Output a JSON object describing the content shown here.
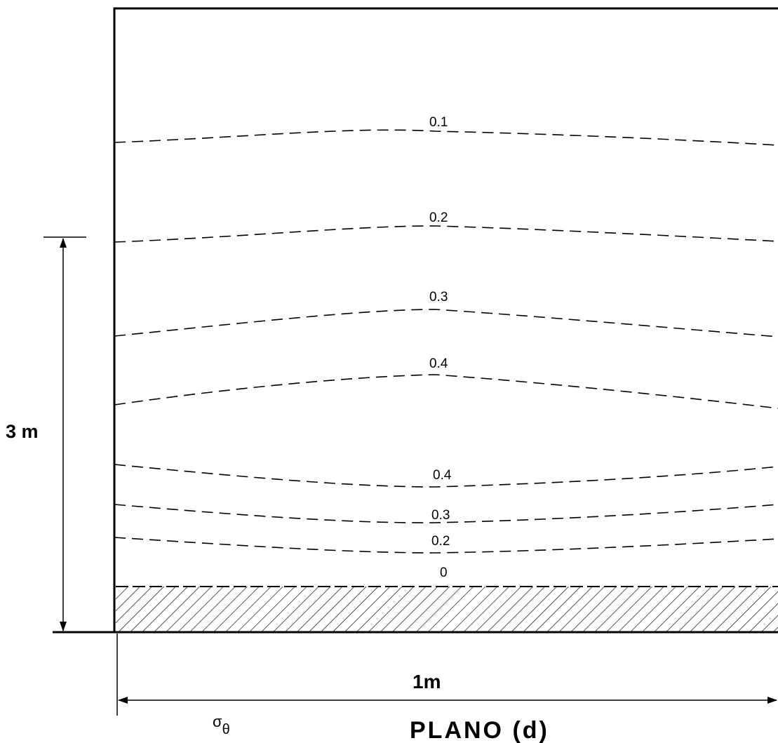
{
  "figure": {
    "caption": "PLANO (d)",
    "stress_symbol": "σθ",
    "stress_symbol_base": "σ",
    "stress_symbol_sub": "θ",
    "height_dimension": "3 m",
    "width_dimension": "1m",
    "contours": [
      {
        "label": "0.1"
      },
      {
        "label": "0.2"
      },
      {
        "label": "0.3"
      },
      {
        "label": "0.4"
      },
      {
        "label": "0.4"
      },
      {
        "label": "0.3"
      },
      {
        "label": "0.2"
      },
      {
        "label": "0"
      }
    ],
    "base_fill": "hatched"
  }
}
